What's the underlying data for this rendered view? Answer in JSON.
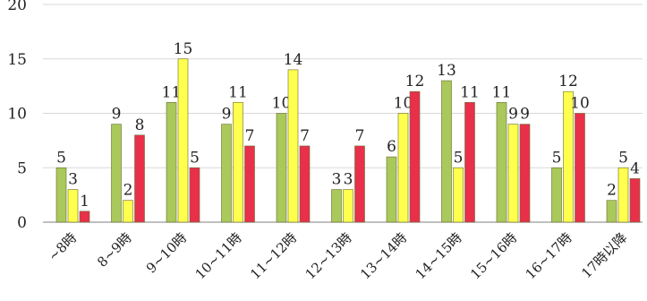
{
  "chart_data": {
    "type": "bar",
    "categories": [
      "~8時",
      "8~9時",
      "9~10時",
      "10~11時",
      "11~12時",
      "12~13時",
      "13~14時",
      "14~15時",
      "15~16時",
      "16~17時",
      "17時以降"
    ],
    "series": [
      {
        "color": "#a9c95b",
        "values": [
          5,
          9,
          11,
          9,
          10,
          3,
          6,
          13,
          11,
          5,
          2
        ]
      },
      {
        "color": "#ffff4d",
        "values": [
          3,
          2,
          15,
          11,
          14,
          3,
          10,
          5,
          9,
          12,
          5
        ]
      },
      {
        "color": "#e8304a",
        "values": [
          1,
          8,
          5,
          7,
          7,
          7,
          12,
          11,
          9,
          10,
          4
        ]
      }
    ],
    "yticks": [
      0,
      5,
      10,
      15,
      20
    ],
    "ylim": [
      0,
      20
    ],
    "grid": true,
    "title": "",
    "xlabel": "",
    "ylabel": ""
  }
}
